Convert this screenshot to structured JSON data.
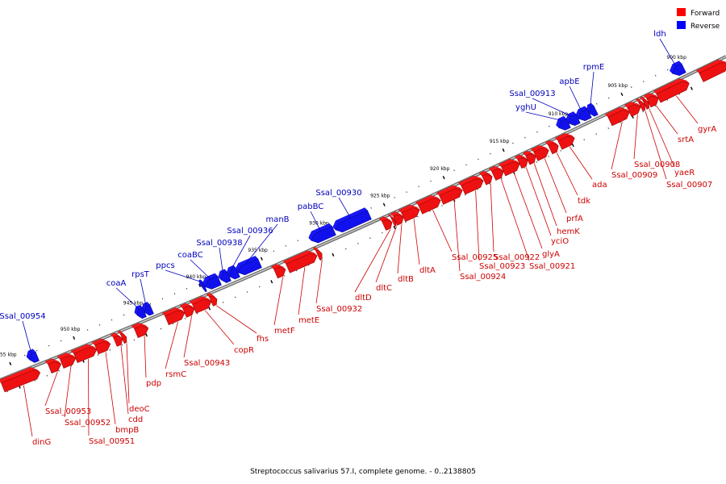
{
  "caption": "Streptococcus salivarius 57.I, complete genome. - 0..2138805",
  "legend": [
    {
      "label": "Forward",
      "color": "#ff0000"
    },
    {
      "label": "Reverse",
      "color": "#0000ff"
    }
  ],
  "colors": {
    "forward": "#ee1111",
    "reverse": "#1111ee",
    "forward_label": "#cc0000",
    "reverse_label": "#0000bb",
    "backbone": "#8a8a8a"
  },
  "ticks": [
    {
      "label": "900 kbp"
    },
    {
      "label": "905 kbp"
    },
    {
      "label": "910 kbp"
    },
    {
      "label": "915 kbp"
    },
    {
      "label": "920 kbp"
    },
    {
      "label": "925 kbp"
    },
    {
      "label": "930 kbp"
    },
    {
      "label": "935 kbp"
    },
    {
      "label": "940 kbp"
    },
    {
      "label": "945 kbp"
    },
    {
      "label": "950 kbp"
    },
    {
      "label": "955 kbp"
    }
  ],
  "forward_genes": [
    {
      "label": ""
    },
    {
      "label": "gyrA"
    },
    {
      "label": "srtA"
    },
    {
      "label": "yaeR"
    },
    {
      "label": "Ssal_00907"
    },
    {
      "label": "Ssal_00908"
    },
    {
      "label": "Ssal_00909"
    },
    {
      "label": "ada"
    },
    {
      "label": "tdk"
    },
    {
      "label": "prfA"
    },
    {
      "label": "hemK"
    },
    {
      "label": "yciO"
    },
    {
      "label": "glyA"
    },
    {
      "label": "Ssal_00921"
    },
    {
      "label": "Ssal_00922"
    },
    {
      "label": "Ssal_00923"
    },
    {
      "label": "Ssal_00924"
    },
    {
      "label": "Ssal_00925"
    },
    {
      "label": "dltA"
    },
    {
      "label": "dltB"
    },
    {
      "label": "dltC"
    },
    {
      "label": "dltD"
    },
    {
      "label": "Ssal_00932"
    },
    {
      "label": "metE"
    },
    {
      "label": "metF"
    },
    {
      "label": "fhs"
    },
    {
      "label": "copR"
    },
    {
      "label": "Ssal_00943"
    },
    {
      "label": "rsmC"
    },
    {
      "label": "pdp"
    },
    {
      "label": "deoC"
    },
    {
      "label": "cdd"
    },
    {
      "label": "bmpB"
    },
    {
      "label": "Ssal_00951"
    },
    {
      "label": "Ssal_00952"
    },
    {
      "label": "Ssal_00953"
    },
    {
      "label": "dinG"
    }
  ],
  "reverse_genes": [
    {
      "label": "ldh"
    },
    {
      "label": "rpmE"
    },
    {
      "label": "apbE"
    },
    {
      "label": "Ssal_00913"
    },
    {
      "label": "yghU"
    },
    {
      "label": "Ssal_00930"
    },
    {
      "label": "pabBC"
    },
    {
      "label": "manB"
    },
    {
      "label": "Ssal_00936"
    },
    {
      "label": "Ssal_00938"
    },
    {
      "label": "coaBC"
    },
    {
      "label": "ppcs"
    },
    {
      "label": "rpsT"
    },
    {
      "label": "coaA"
    },
    {
      "label": "Ssal_00954"
    }
  ]
}
